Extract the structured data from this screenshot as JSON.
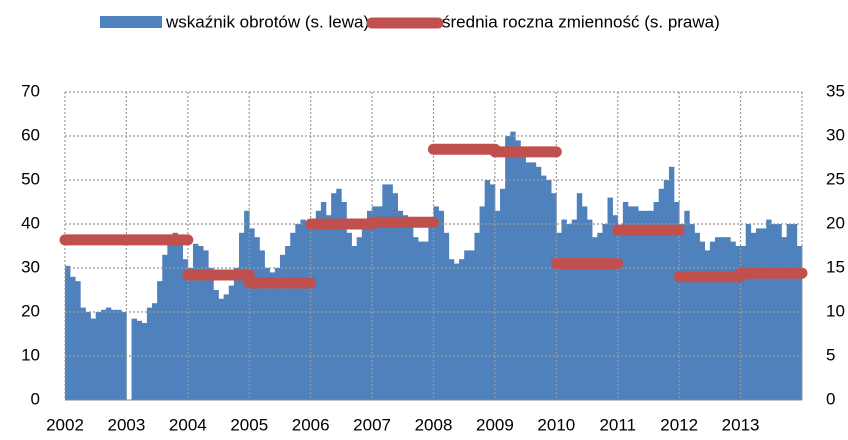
{
  "chart_data": {
    "type": "bar-line",
    "xlim": [
      2002,
      2014
    ],
    "xticks": [
      2002,
      2003,
      2004,
      2005,
      2006,
      2007,
      2008,
      2009,
      2010,
      2011,
      2012,
      2013
    ],
    "ylim": [
      0,
      70
    ],
    "yticks": [
      0,
      10,
      20,
      30,
      40,
      50,
      60,
      70
    ],
    "y2lim": [
      0,
      35
    ],
    "y2ticks": [
      0,
      5,
      10,
      15,
      20,
      25,
      30,
      35
    ],
    "grid": true,
    "legend": "top",
    "series": [
      {
        "name": "wskaźnik obrotów (s. lewa)",
        "color": "#4f81bd",
        "type": "bar",
        "values": [
          30.5,
          28,
          27,
          21,
          20,
          18.5,
          20,
          20.5,
          21,
          20.5,
          20.5,
          20,
          null,
          18.5,
          18,
          17.5,
          21,
          22,
          27,
          33,
          36,
          38,
          37,
          32,
          30,
          35.5,
          35,
          34,
          30,
          25,
          23,
          24,
          26,
          30,
          38,
          43,
          39,
          37,
          34,
          30,
          29,
          30,
          33,
          35,
          38,
          40,
          41,
          40,
          40,
          43,
          45,
          42,
          47,
          48,
          45,
          38,
          35,
          37,
          41,
          43,
          44,
          44,
          49,
          49,
          47,
          43,
          42,
          40,
          37,
          36,
          36,
          40,
          44,
          43,
          38,
          32,
          31,
          32,
          34,
          34,
          38,
          44,
          50,
          49,
          43,
          48,
          60,
          61,
          59,
          56,
          54,
          54,
          53,
          51,
          50,
          47,
          38,
          41,
          40,
          41,
          47,
          44,
          41,
          37,
          38,
          40,
          46,
          42,
          38,
          45,
          44,
          44,
          43,
          43,
          43,
          45,
          48,
          50,
          53,
          45,
          40,
          43,
          40,
          38,
          36,
          34,
          36,
          37,
          37,
          37,
          36,
          35,
          35,
          40,
          38,
          39,
          39,
          41,
          40,
          40,
          37,
          40,
          40,
          35
        ]
      },
      {
        "name": "średnia roczna zmienność (s. prawa)",
        "color": "#c0504d",
        "type": "step",
        "axis": "y2",
        "x": [
          2002,
          2003,
          2004,
          2005,
          2006,
          2007,
          2008,
          2009,
          2010,
          2011,
          2012,
          2013
        ],
        "values": [
          18.2,
          18.2,
          14.2,
          13.3,
          20,
          20.2,
          28.5,
          28.2,
          15.5,
          19.3,
          14,
          14.4
        ]
      }
    ]
  }
}
